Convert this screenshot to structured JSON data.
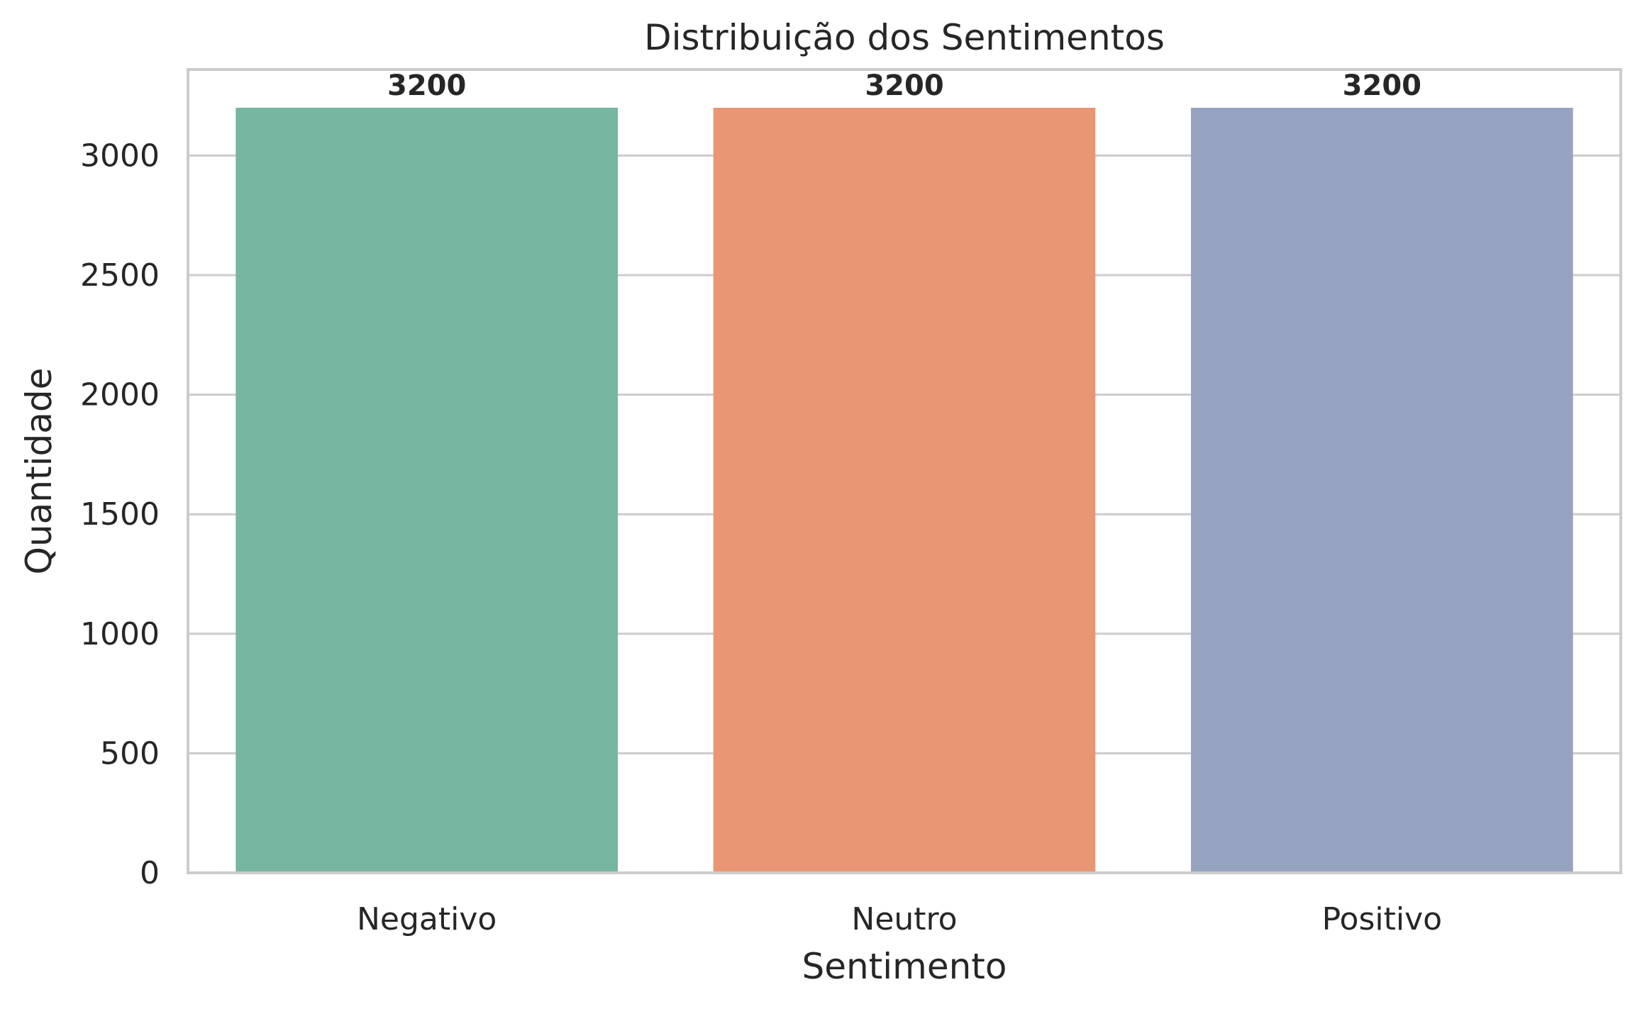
{
  "chart_data": {
    "type": "bar",
    "title": "Distribuição dos Sentimentos",
    "xlabel": "Sentimento",
    "ylabel": "Quantidade",
    "categories": [
      "Negativo",
      "Neutro",
      "Positivo"
    ],
    "values": [
      3200,
      3200,
      3200
    ],
    "data_labels": [
      "3200",
      "3200",
      "3200"
    ],
    "colors": [
      "#76b5a0",
      "#e99675",
      "#96a4c2"
    ],
    "ylim": [
      0,
      3360
    ],
    "yticks": [
      0,
      500,
      1000,
      1500,
      2000,
      2500,
      3000
    ],
    "ytick_labels": [
      "0",
      "500",
      "1000",
      "1500",
      "2000",
      "2500",
      "3000"
    ],
    "grid": "horizontal",
    "legend": "none"
  }
}
